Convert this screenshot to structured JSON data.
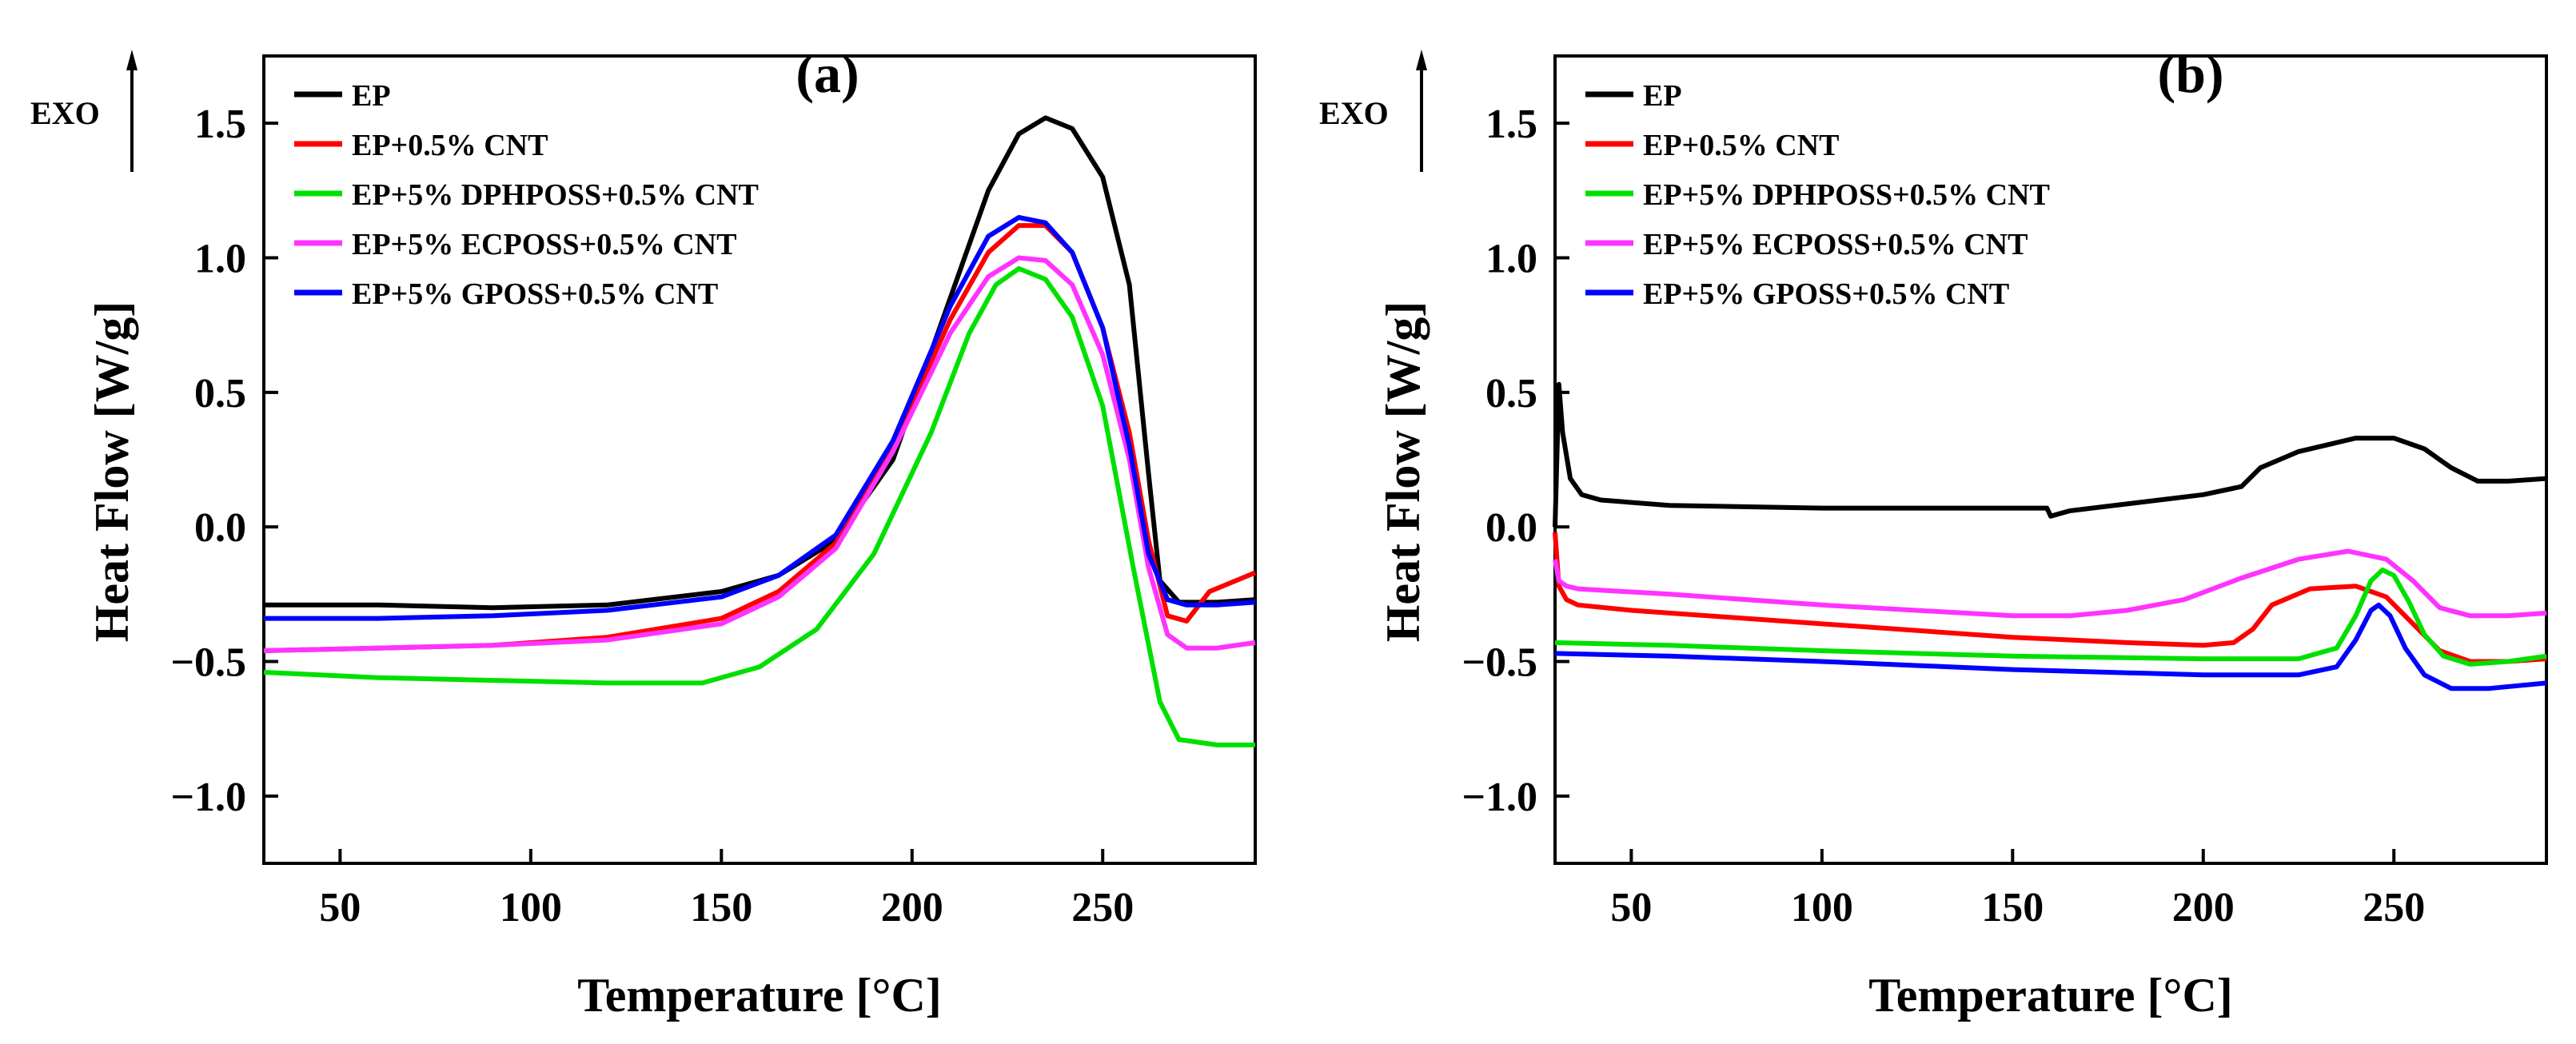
{
  "exo_label": "EXO",
  "chart_data": [
    {
      "type": "line",
      "panel_label": "(a)",
      "xlabel": "Temperature [°C]",
      "ylabel": "Heat Flow [W/g]",
      "xlim": [
        30,
        290
      ],
      "ylim": [
        -1.25,
        1.75
      ],
      "xticks": [
        50,
        100,
        150,
        200,
        250
      ],
      "yticks": [
        -1.0,
        -0.5,
        0.0,
        0.5,
        1.0,
        1.5
      ],
      "ytick_labels": [
        "−1.0",
        "−0.5",
        "0.0",
        "0.5",
        "1.0",
        "1.5"
      ],
      "legend": "top-left",
      "series": [
        {
          "name": "EP",
          "color": "#000000",
          "x": [
            30,
            60,
            90,
            120,
            150,
            165,
            180,
            195,
            210,
            220,
            228,
            235,
            242,
            250,
            257,
            262,
            265,
            270,
            280,
            290
          ],
          "y": [
            -0.29,
            -0.29,
            -0.3,
            -0.29,
            -0.24,
            -0.18,
            -0.05,
            0.25,
            0.85,
            1.25,
            1.46,
            1.52,
            1.48,
            1.3,
            0.9,
            0.2,
            -0.2,
            -0.28,
            -0.28,
            -0.27
          ]
        },
        {
          "name": "EP+0.5% CNT",
          "color": "#ff0000",
          "x": [
            30,
            60,
            90,
            120,
            150,
            165,
            180,
            195,
            210,
            220,
            228,
            235,
            242,
            250,
            257,
            262,
            267,
            272,
            278,
            290
          ],
          "y": [
            -0.46,
            -0.45,
            -0.44,
            -0.41,
            -0.34,
            -0.24,
            -0.06,
            0.3,
            0.77,
            1.02,
            1.12,
            1.12,
            1.02,
            0.74,
            0.35,
            -0.05,
            -0.33,
            -0.35,
            -0.24,
            -0.17
          ]
        },
        {
          "name": "EP+5% DPHPOSS+0.5% CNT",
          "color": "#00e000",
          "x": [
            30,
            60,
            90,
            120,
            145,
            160,
            175,
            190,
            205,
            215,
            222,
            228,
            235,
            242,
            250,
            258,
            265,
            270,
            280,
            290
          ],
          "y": [
            -0.54,
            -0.56,
            -0.57,
            -0.58,
            -0.58,
            -0.52,
            -0.38,
            -0.1,
            0.35,
            0.72,
            0.9,
            0.96,
            0.92,
            0.78,
            0.45,
            -0.15,
            -0.65,
            -0.79,
            -0.81,
            -0.81
          ]
        },
        {
          "name": "EP+5% ECPOSS+0.5% CNT",
          "color": "#ff33ff",
          "x": [
            30,
            60,
            90,
            120,
            150,
            165,
            180,
            195,
            210,
            220,
            228,
            235,
            242,
            250,
            257,
            262,
            267,
            272,
            280,
            290
          ],
          "y": [
            -0.46,
            -0.45,
            -0.44,
            -0.42,
            -0.36,
            -0.26,
            -0.08,
            0.28,
            0.72,
            0.93,
            1.0,
            0.99,
            0.9,
            0.64,
            0.25,
            -0.15,
            -0.4,
            -0.45,
            -0.45,
            -0.43
          ]
        },
        {
          "name": "EP+5% GPOSS+0.5% CNT",
          "color": "#0000ff",
          "x": [
            30,
            60,
            90,
            120,
            150,
            165,
            180,
            195,
            210,
            220,
            228,
            235,
            242,
            250,
            257,
            262,
            267,
            272,
            280,
            290
          ],
          "y": [
            -0.34,
            -0.34,
            -0.33,
            -0.31,
            -0.26,
            -0.18,
            -0.03,
            0.32,
            0.82,
            1.08,
            1.15,
            1.13,
            1.02,
            0.74,
            0.3,
            -0.1,
            -0.27,
            -0.29,
            -0.29,
            -0.28
          ]
        }
      ]
    },
    {
      "type": "line",
      "panel_label": "(b)",
      "xlabel": "Temperature [°C]",
      "ylabel": "Heat Flow [W/g]",
      "xlim": [
        30,
        290
      ],
      "ylim": [
        -1.25,
        1.75
      ],
      "xticks": [
        50,
        100,
        150,
        200,
        250
      ],
      "yticks": [
        -1.0,
        -0.5,
        0.0,
        0.5,
        1.0,
        1.5
      ],
      "ytick_labels": [
        "−1.0",
        "−0.5",
        "0.0",
        "0.5",
        "1.0",
        "1.5"
      ],
      "legend": "top-left",
      "series": [
        {
          "name": "EP",
          "color": "#000000",
          "x": [
            30,
            31,
            32,
            34,
            37,
            42,
            60,
            100,
            150,
            159,
            160,
            165,
            200,
            210,
            215,
            225,
            240,
            250,
            258,
            265,
            272,
            280,
            290
          ],
          "y": [
            0.0,
            0.53,
            0.35,
            0.18,
            0.12,
            0.1,
            0.08,
            0.07,
            0.07,
            0.07,
            0.04,
            0.06,
            0.12,
            0.15,
            0.22,
            0.28,
            0.33,
            0.33,
            0.29,
            0.22,
            0.17,
            0.17,
            0.18
          ]
        },
        {
          "name": "EP+0.5% CNT",
          "color": "#ff0000",
          "x": [
            30,
            31,
            33,
            36,
            50,
            100,
            150,
            180,
            200,
            208,
            213,
            218,
            228,
            240,
            248,
            255,
            262,
            270,
            280,
            290
          ],
          "y": [
            -0.02,
            -0.22,
            -0.27,
            -0.29,
            -0.31,
            -0.36,
            -0.41,
            -0.43,
            -0.44,
            -0.43,
            -0.38,
            -0.29,
            -0.23,
            -0.22,
            -0.26,
            -0.36,
            -0.46,
            -0.5,
            -0.5,
            -0.49
          ]
        },
        {
          "name": "EP+5% DPHPOSS+0.5% CNT",
          "color": "#00e000",
          "x": [
            30,
            60,
            100,
            150,
            200,
            225,
            235,
            240,
            244,
            247,
            250,
            254,
            258,
            263,
            270,
            280,
            290
          ],
          "y": [
            -0.43,
            -0.44,
            -0.46,
            -0.48,
            -0.49,
            -0.49,
            -0.45,
            -0.33,
            -0.2,
            -0.16,
            -0.18,
            -0.28,
            -0.4,
            -0.48,
            -0.51,
            -0.5,
            -0.48
          ]
        },
        {
          "name": "EP+5% ECPOSS+0.5% CNT",
          "color": "#ff33ff",
          "x": [
            30,
            31,
            33,
            36,
            60,
            100,
            150,
            165,
            180,
            195,
            210,
            225,
            238,
            248,
            255,
            262,
            270,
            280,
            290
          ],
          "y": [
            -0.12,
            -0.2,
            -0.22,
            -0.23,
            -0.25,
            -0.29,
            -0.33,
            -0.33,
            -0.31,
            -0.27,
            -0.19,
            -0.12,
            -0.09,
            -0.12,
            -0.2,
            -0.3,
            -0.33,
            -0.33,
            -0.32
          ]
        },
        {
          "name": "EP+5% GPOSS+0.5% CNT",
          "color": "#0000ff",
          "x": [
            30,
            60,
            100,
            150,
            200,
            225,
            235,
            240,
            244,
            246,
            249,
            253,
            258,
            265,
            275,
            290
          ],
          "y": [
            -0.47,
            -0.48,
            -0.5,
            -0.53,
            -0.55,
            -0.55,
            -0.52,
            -0.42,
            -0.31,
            -0.29,
            -0.33,
            -0.45,
            -0.55,
            -0.6,
            -0.6,
            -0.58
          ]
        }
      ]
    }
  ]
}
